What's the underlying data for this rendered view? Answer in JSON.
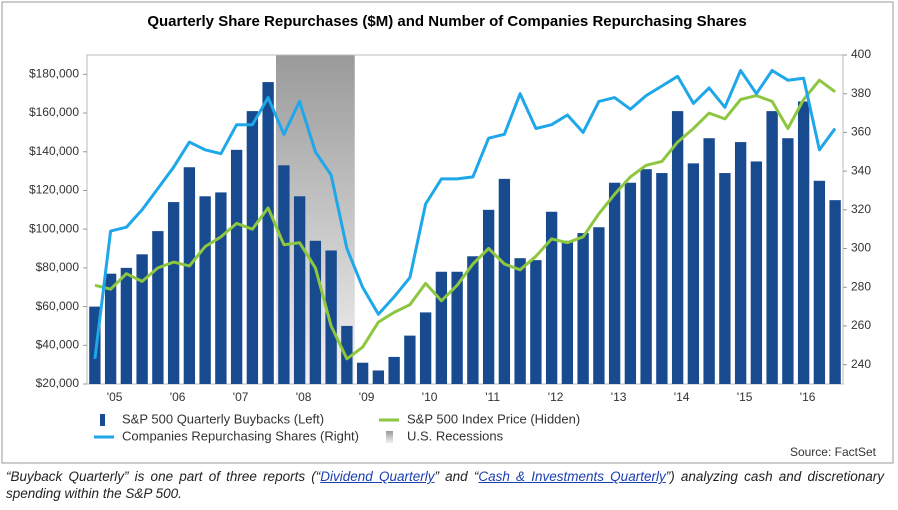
{
  "chart_data": {
    "type": "bar-line",
    "title": "Quarterly Share Repurchases ($M) and Number of Companies Repurchasing Shares",
    "source": "Source: FactSet",
    "categories": [
      null,
      "'05",
      null,
      null,
      null,
      "'06",
      null,
      null,
      null,
      "'07",
      null,
      null,
      null,
      "'08",
      null,
      null,
      null,
      "'09",
      null,
      null,
      null,
      "'10",
      null,
      null,
      null,
      "'11",
      null,
      null,
      null,
      "'12",
      null,
      null,
      null,
      "'13",
      null,
      null,
      null,
      "'14",
      null,
      null,
      null,
      "'15",
      null,
      null,
      null,
      "'16",
      null,
      null
    ],
    "ylim": [
      20000,
      190000
    ],
    "yticks": [
      {
        "value": 20000,
        "label": "$20,000"
      },
      {
        "value": 40000,
        "label": "$40,000"
      },
      {
        "value": 60000,
        "label": "$60,000"
      },
      {
        "value": 80000,
        "label": "$80,000"
      },
      {
        "value": 100000,
        "label": "$100,000"
      },
      {
        "value": 120000,
        "label": "$120,000"
      },
      {
        "value": 140000,
        "label": "$140,000"
      },
      {
        "value": 160000,
        "label": "$160,000"
      },
      {
        "value": 180000,
        "label": "$180,000"
      }
    ],
    "y2lim": [
      230,
      400
    ],
    "y2ticks": [
      240,
      260,
      280,
      300,
      320,
      340,
      360,
      380,
      400
    ],
    "series": [
      {
        "name": "S&P 500 Quarterly Buybacks (Left)",
        "type": "bar",
        "color": "#174a8f",
        "values": [
          60000,
          77000,
          80000,
          87000,
          99000,
          114000,
          132000,
          117000,
          119000,
          141000,
          161000,
          176000,
          133000,
          117000,
          94000,
          89000,
          50000,
          31000,
          27000,
          34000,
          45000,
          57000,
          78000,
          78000,
          86000,
          110000,
          126000,
          85000,
          84000,
          109000,
          94000,
          98000,
          101000,
          124000,
          124000,
          131000,
          129000,
          161000,
          134000,
          147000,
          129000,
          145000,
          135000,
          161000,
          147000,
          166000,
          125000,
          115000
        ]
      },
      {
        "name": "S&P 500 Index Price (Hidden)",
        "type": "line",
        "axis": "y2",
        "color": "#8dc63f",
        "values": [
          281,
          279,
          287,
          283,
          290,
          293,
          291,
          301,
          306,
          313,
          310,
          321,
          302,
          303,
          290,
          260,
          243,
          249,
          262,
          267,
          271,
          282,
          273,
          281,
          292,
          300,
          292,
          289,
          296,
          305,
          303,
          306,
          318,
          328,
          337,
          343,
          345,
          355,
          362,
          370,
          367,
          377,
          379,
          376,
          362,
          377,
          387,
          381
        ]
      },
      {
        "name": "Companies Repurchasing Shares (Right)",
        "type": "line",
        "axis": "y2",
        "color": "#1ea7e9",
        "values": [
          243,
          309,
          311,
          320,
          331,
          342,
          355,
          351,
          349,
          364,
          364,
          378,
          359,
          376,
          350,
          338,
          300,
          280,
          266,
          275,
          285,
          323,
          336,
          336,
          337,
          357,
          359,
          380,
          362,
          364,
          369,
          360,
          376,
          378,
          372,
          379,
          384,
          389,
          375,
          383,
          373,
          392,
          380,
          392,
          387,
          388,
          351,
          362
        ]
      }
    ],
    "recession": {
      "name": "U.S. Recessions",
      "range": [
        12,
        17
      ]
    }
  },
  "caption": {
    "parts": [
      "“Buyback Quarterly” is one part of three reports (“",
      "Dividend Quarterly",
      "” and “",
      "Cash & Investments Quarterly",
      "”) analyzing cash and discretionary spending within the S&P 500."
    ]
  }
}
